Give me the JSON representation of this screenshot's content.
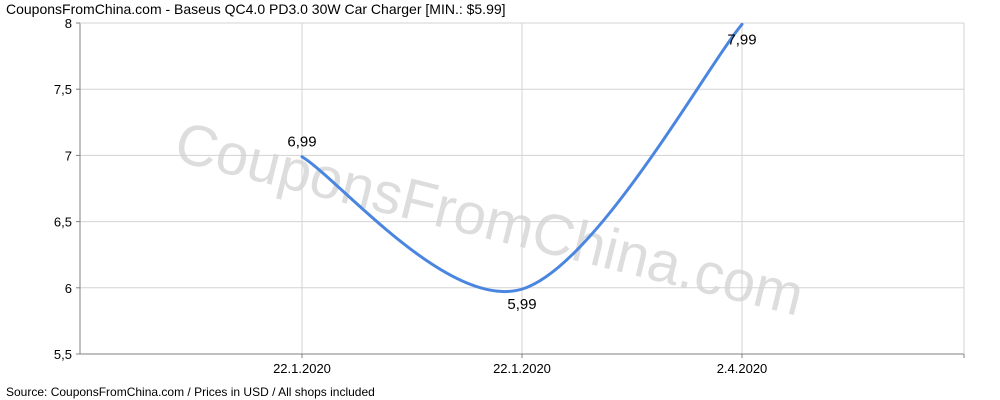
{
  "title": "CouponsFromChina.com - Baseus QC4.0 PD3.0 30W Car Charger [MIN.: $5.99]",
  "source": "Source:  CouponsFromChina.com / Prices in USD / All shops included",
  "watermark": "CouponsFromChina.com",
  "colors": {
    "line": "#4a86e0",
    "grid": "#d3d3d3",
    "axis": "#808080",
    "watermark": "#dddddd"
  },
  "chart_data": {
    "type": "line",
    "x_ticks": [
      "22.1.2020",
      "22.1.2020",
      "2.4.2020"
    ],
    "y_ticks": [
      "5,5",
      "6",
      "6,5",
      "7",
      "7,5",
      "8"
    ],
    "ylim": [
      5.5,
      8
    ],
    "grid": true,
    "series": [
      {
        "values": [
          6.99,
          5.99,
          7.99
        ],
        "labels": [
          "6,99",
          "5,99",
          "7,99"
        ]
      }
    ]
  }
}
